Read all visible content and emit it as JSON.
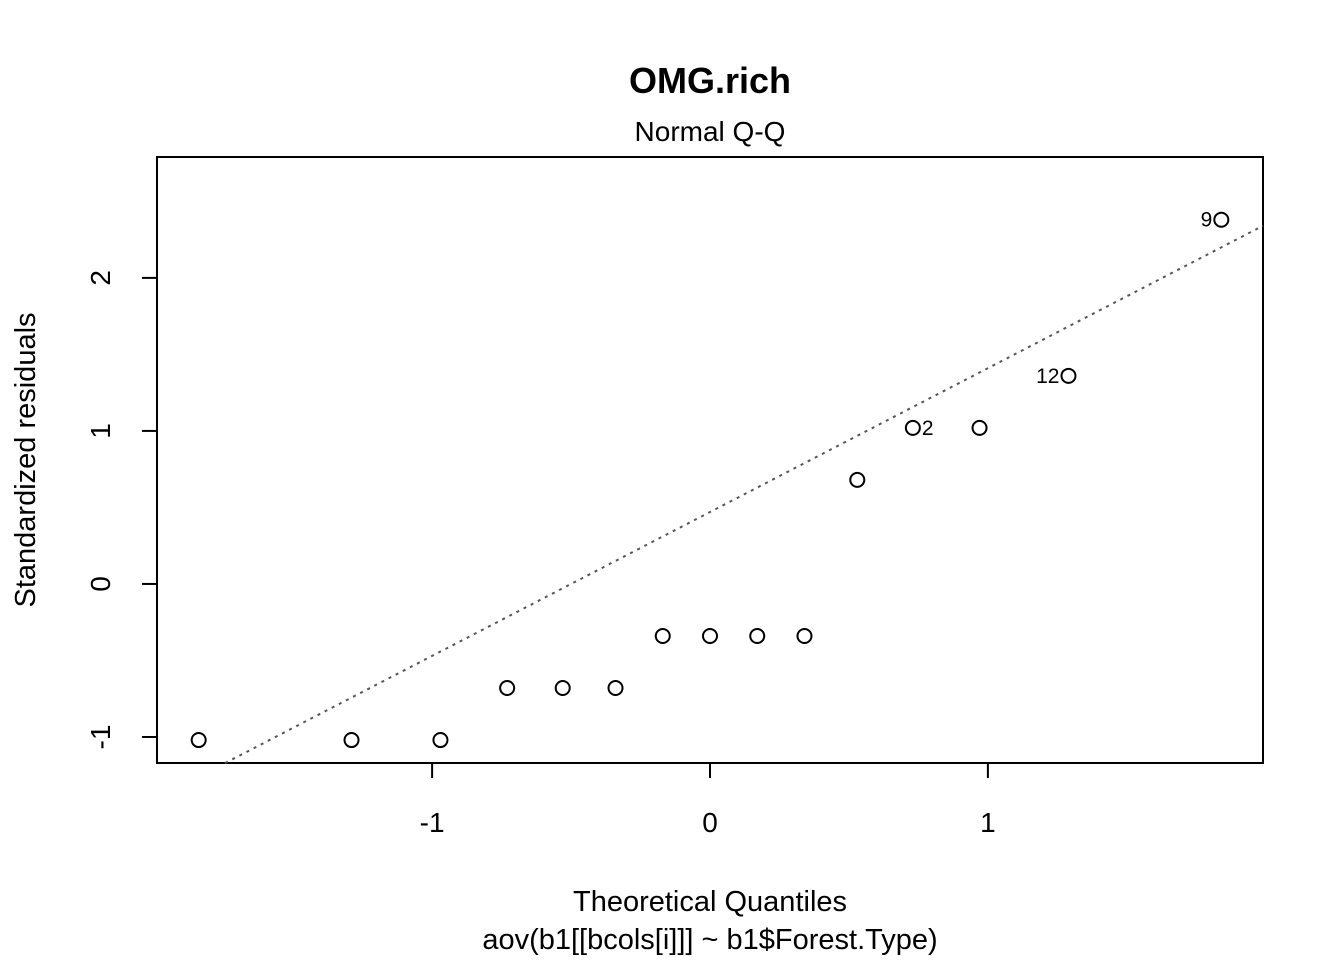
{
  "chart_data": {
    "type": "scatter",
    "title": "OMG.rich",
    "subtitle": "Normal Q-Q",
    "xlabel": "Theoretical Quantiles",
    "xlabel_sub": "aov(b1[[bcols[i]]] ~ b1$Forest.Type)",
    "ylabel": "Standardized residuals",
    "xlim": [
      -1.99,
      1.99
    ],
    "ylim": [
      -1.17,
      2.79
    ],
    "xticks": [
      -1,
      0,
      1
    ],
    "xtick_labels": [
      "-1",
      "0",
      "1"
    ],
    "yticks": [
      -1,
      0,
      1,
      2
    ],
    "ytick_labels": [
      "-1",
      "0",
      "1",
      "2"
    ],
    "grid": false,
    "points": [
      {
        "x": -1.84,
        "y": -1.02,
        "label": ""
      },
      {
        "x": -1.29,
        "y": -1.02,
        "label": ""
      },
      {
        "x": -0.97,
        "y": -1.02,
        "label": ""
      },
      {
        "x": -0.73,
        "y": -0.68,
        "label": ""
      },
      {
        "x": -0.53,
        "y": -0.68,
        "label": ""
      },
      {
        "x": -0.34,
        "y": -0.68,
        "label": ""
      },
      {
        "x": -0.17,
        "y": -0.34,
        "label": ""
      },
      {
        "x": 0.0,
        "y": -0.34,
        "label": ""
      },
      {
        "x": 0.17,
        "y": -0.34,
        "label": ""
      },
      {
        "x": 0.34,
        "y": -0.34,
        "label": ""
      },
      {
        "x": 0.53,
        "y": 0.68,
        "label": ""
      },
      {
        "x": 0.73,
        "y": 1.02,
        "label": "2",
        "label_side": "right"
      },
      {
        "x": 0.97,
        "y": 1.02,
        "label": ""
      },
      {
        "x": 1.29,
        "y": 1.36,
        "label": "12",
        "label_side": "left"
      },
      {
        "x": 1.84,
        "y": 2.38,
        "label": "9",
        "label_side": "left"
      }
    ],
    "reference_line": {
      "intercept": 0.47,
      "slope": 0.94,
      "style": "dotted",
      "color": "#555555"
    }
  }
}
